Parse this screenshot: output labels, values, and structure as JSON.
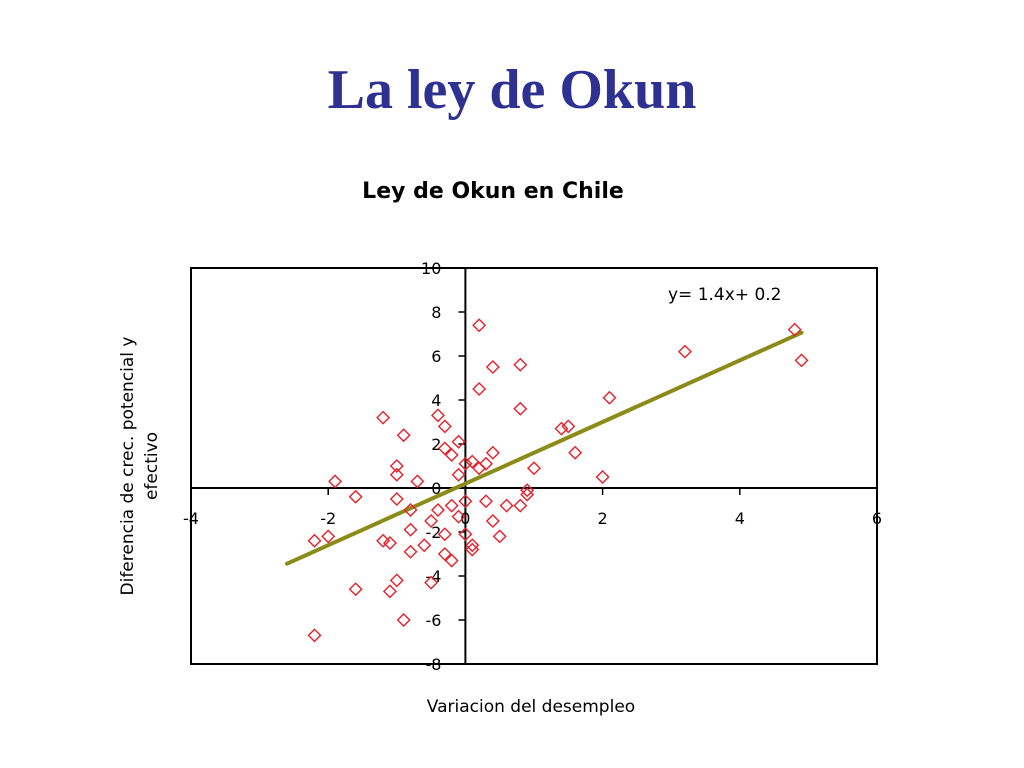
{
  "slide": {
    "title": "La ley de Okun"
  },
  "chart_data": {
    "type": "scatter",
    "title": "Ley de Okun en Chile",
    "xlabel": "Variacion del desempleo",
    "ylabel": "Diferencia de crec. potencial y efectivo",
    "xlim": [
      -4,
      6
    ],
    "ylim": [
      -8,
      10
    ],
    "xticks": [
      -4,
      -2,
      0,
      2,
      4,
      6
    ],
    "yticks": [
      -8,
      -6,
      -4,
      -2,
      0,
      2,
      4,
      6,
      8,
      10
    ],
    "grid": false,
    "marker": "diamond",
    "point_color": "#e8202a",
    "trendline": {
      "equation": "y= 1.4x+ 0.2",
      "slope": 1.4,
      "intercept": 0.2,
      "x_range": [
        -2.6,
        4.9
      ],
      "color": "#8b8b1a"
    },
    "points": [
      [
        -2.2,
        -6.7
      ],
      [
        -2.2,
        -2.4
      ],
      [
        -2.0,
        -2.2
      ],
      [
        -1.9,
        0.3
      ],
      [
        -1.6,
        -0.4
      ],
      [
        -1.6,
        -4.6
      ],
      [
        -1.2,
        3.2
      ],
      [
        -1.2,
        -2.4
      ],
      [
        -1.1,
        -2.5
      ],
      [
        -1.1,
        -4.7
      ],
      [
        -1.0,
        1.0
      ],
      [
        -1.0,
        0.6
      ],
      [
        -1.0,
        -0.5
      ],
      [
        -1.0,
        -4.2
      ],
      [
        -0.9,
        -6.0
      ],
      [
        -0.9,
        2.4
      ],
      [
        -0.8,
        -1.0
      ],
      [
        -0.8,
        -1.9
      ],
      [
        -0.8,
        -2.9
      ],
      [
        -0.7,
        0.3
      ],
      [
        -0.6,
        -2.6
      ],
      [
        -0.5,
        -4.3
      ],
      [
        -0.5,
        -1.5
      ],
      [
        -0.4,
        -1.0
      ],
      [
        -0.4,
        3.3
      ],
      [
        -0.3,
        2.8
      ],
      [
        -0.3,
        1.8
      ],
      [
        -0.3,
        -2.1
      ],
      [
        -0.3,
        -3.0
      ],
      [
        -0.2,
        1.5
      ],
      [
        -0.2,
        -0.8
      ],
      [
        -0.2,
        -3.3
      ],
      [
        -0.1,
        2.1
      ],
      [
        -0.1,
        0.6
      ],
      [
        -0.1,
        -1.3
      ],
      [
        0.0,
        -2.1
      ],
      [
        0.0,
        -0.6
      ],
      [
        0.0,
        1.1
      ],
      [
        0.1,
        1.2
      ],
      [
        0.1,
        -2.6
      ],
      [
        0.1,
        -2.8
      ],
      [
        0.2,
        0.9
      ],
      [
        0.2,
        7.4
      ],
      [
        0.2,
        4.5
      ],
      [
        0.3,
        1.1
      ],
      [
        0.3,
        -0.6
      ],
      [
        0.4,
        -1.5
      ],
      [
        0.4,
        5.5
      ],
      [
        0.4,
        1.6
      ],
      [
        0.5,
        -2.2
      ],
      [
        0.6,
        -0.8
      ],
      [
        0.8,
        5.6
      ],
      [
        0.8,
        3.6
      ],
      [
        0.8,
        -0.8
      ],
      [
        0.9,
        -0.3
      ],
      [
        0.9,
        -0.1
      ],
      [
        1.0,
        0.9
      ],
      [
        1.4,
        2.7
      ],
      [
        1.5,
        2.8
      ],
      [
        1.6,
        1.6
      ],
      [
        2.0,
        0.5
      ],
      [
        2.1,
        4.1
      ],
      [
        3.2,
        6.2
      ],
      [
        4.8,
        7.2
      ],
      [
        4.9,
        5.8
      ]
    ]
  }
}
